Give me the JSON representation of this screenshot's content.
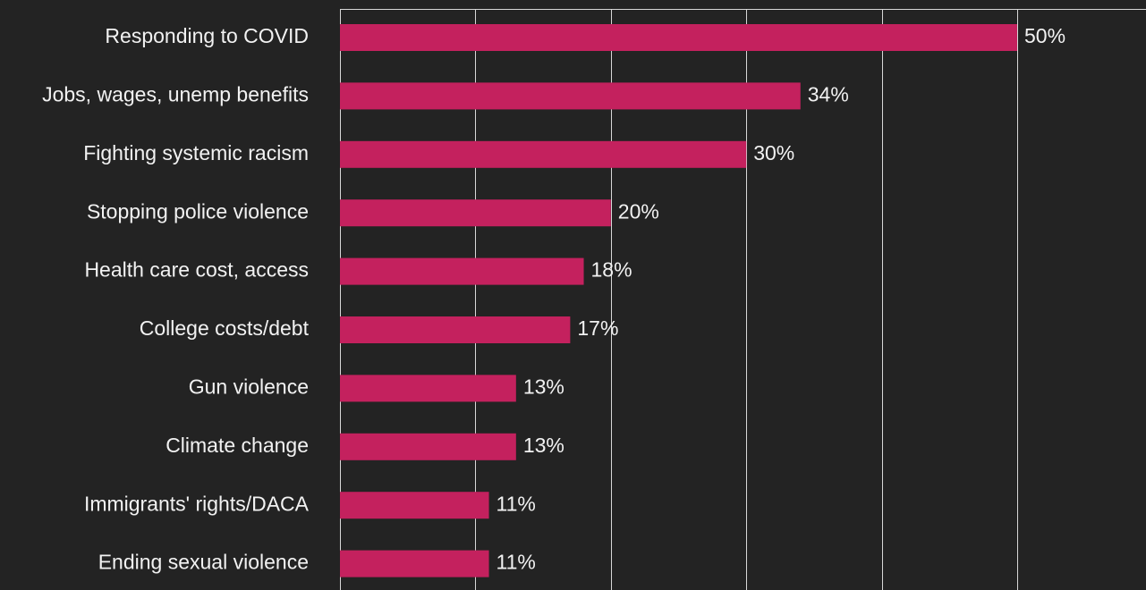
{
  "chart_data": {
    "type": "bar",
    "orientation": "horizontal",
    "categories": [
      "Responding to COVID",
      "Jobs, wages, unemp benefits",
      "Fighting systemic racism",
      "Stopping police violence",
      "Health care cost, access",
      "College costs/debt",
      "Gun violence",
      "Climate change",
      "Immigrants' rights/DACA",
      "Ending sexual violence"
    ],
    "values": [
      50,
      34,
      30,
      20,
      18,
      17,
      13,
      13,
      11,
      11
    ],
    "value_labels": [
      "50%",
      "34%",
      "30%",
      "20%",
      "18%",
      "17%",
      "13%",
      "13%",
      "11%",
      "11%"
    ],
    "color": "#c4215e",
    "xlim": [
      0,
      50
    ],
    "xticks": [
      0,
      10,
      20,
      30,
      40,
      50
    ],
    "grid": true
  }
}
